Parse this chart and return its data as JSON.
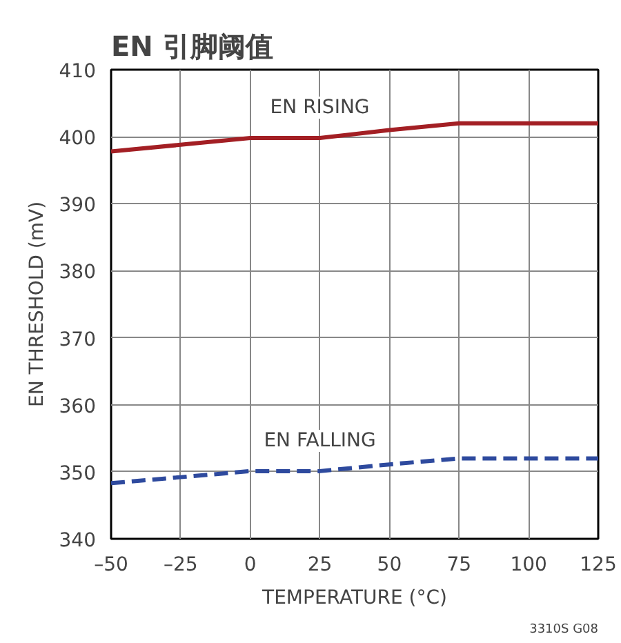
{
  "chart_data": {
    "type": "line",
    "title": "EN 引脚阈值",
    "xlabel": "TEMPERATURE (°C)",
    "ylabel": "EN THRESHOLD (mV)",
    "x": [
      -50,
      -25,
      0,
      25,
      50,
      75,
      100,
      125
    ],
    "series": [
      {
        "name": "EN RISING",
        "color": "#a31f24",
        "line_style": "solid",
        "values": [
          397.8,
          398.8,
          399.8,
          399.8,
          401.0,
          402.0,
          402.0,
          402.0
        ]
      },
      {
        "name": "EN FALLING",
        "color": "#2e4a9e",
        "line_style": "dashed",
        "values": [
          348.3,
          349.2,
          350.1,
          350.1,
          351.1,
          352.0,
          352.0,
          352.0
        ]
      }
    ],
    "xlim": [
      -50,
      125
    ],
    "xticks": [
      {
        "value": -50,
        "label": "–50"
      },
      {
        "value": -25,
        "label": "–25"
      },
      0,
      25,
      50,
      75,
      100,
      125
    ],
    "ylim": [
      340,
      410
    ],
    "yticks": [
      340,
      350,
      360,
      370,
      380,
      390,
      400,
      410
    ],
    "grid": true,
    "marker": "none",
    "annotations": [
      "3310S G08"
    ]
  }
}
